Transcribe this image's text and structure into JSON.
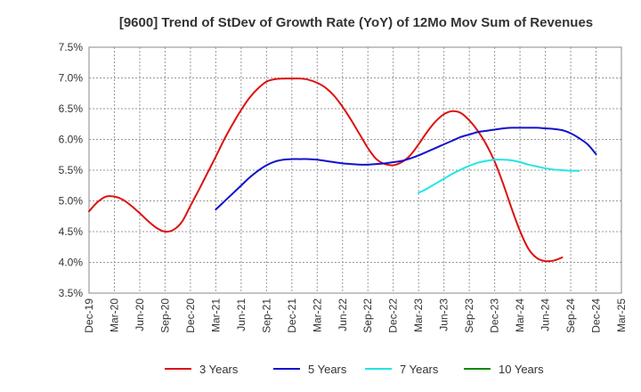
{
  "chart_data": {
    "type": "line",
    "title": "[9600]  Trend of StDev of Growth Rate (YoY) of 12Mo Mov Sum of Revenues",
    "xlabel": "",
    "ylabel": "",
    "x_tick_labels": [
      "Dec-19",
      "Mar-20",
      "Jun-20",
      "Sep-20",
      "Dec-20",
      "Mar-21",
      "Jun-21",
      "Sep-21",
      "Dec-21",
      "Mar-22",
      "Jun-22",
      "Sep-22",
      "Dec-22",
      "Mar-23",
      "Jun-23",
      "Sep-23",
      "Dec-23",
      "Mar-24",
      "Jun-24",
      "Sep-24",
      "Dec-24",
      "Mar-25"
    ],
    "y_tick_labels": [
      "3.5%",
      "4.0%",
      "4.5%",
      "5.0%",
      "5.5%",
      "6.0%",
      "6.5%",
      "7.0%",
      "7.5%"
    ],
    "ylim": [
      3.5,
      7.5
    ],
    "y_unit": "%",
    "grid": true,
    "legend_position": "bottom",
    "series": [
      {
        "name": "3 Years",
        "color": "#dd1111",
        "start_index": 0,
        "values": [
          4.83,
          4.98,
          5.07,
          5.07,
          5.02,
          4.92,
          4.8,
          4.67,
          4.56,
          4.5,
          4.53,
          4.66,
          4.92,
          5.18,
          5.45,
          5.72,
          6.0,
          6.25,
          6.48,
          6.68,
          6.83,
          6.94,
          6.98,
          6.99,
          6.99,
          6.99,
          6.97,
          6.92,
          6.84,
          6.71,
          6.53,
          6.32,
          6.09,
          5.86,
          5.68,
          5.6,
          5.58,
          5.63,
          5.74,
          5.92,
          6.12,
          6.29,
          6.41,
          6.46,
          6.43,
          6.31,
          6.14,
          5.92,
          5.64,
          5.28,
          4.88,
          4.51,
          4.22,
          4.07,
          4.02,
          4.03,
          4.08
        ]
      },
      {
        "name": "5 Years",
        "color": "#1111cc",
        "start_index": 15,
        "values": [
          4.86,
          4.99,
          5.12,
          5.25,
          5.38,
          5.49,
          5.58,
          5.64,
          5.67,
          5.68,
          5.68,
          5.68,
          5.67,
          5.65,
          5.63,
          5.61,
          5.6,
          5.59,
          5.59,
          5.6,
          5.61,
          5.63,
          5.65,
          5.69,
          5.74,
          5.8,
          5.86,
          5.92,
          5.98,
          6.04,
          6.08,
          6.12,
          6.14,
          6.16,
          6.18,
          6.19,
          6.19,
          6.19,
          6.19,
          6.18,
          6.17,
          6.15,
          6.1,
          6.02,
          5.92,
          5.76
        ]
      },
      {
        "name": "7 Years",
        "color": "#22e5e5",
        "start_index": 39,
        "values": [
          5.13,
          5.2,
          5.28,
          5.36,
          5.44,
          5.51,
          5.57,
          5.62,
          5.65,
          5.67,
          5.67,
          5.66,
          5.63,
          5.59,
          5.56,
          5.53,
          5.51,
          5.5,
          5.49,
          5.49
        ]
      },
      {
        "name": "10 Years",
        "color": "#118811",
        "start_index": 0,
        "values": []
      }
    ]
  }
}
